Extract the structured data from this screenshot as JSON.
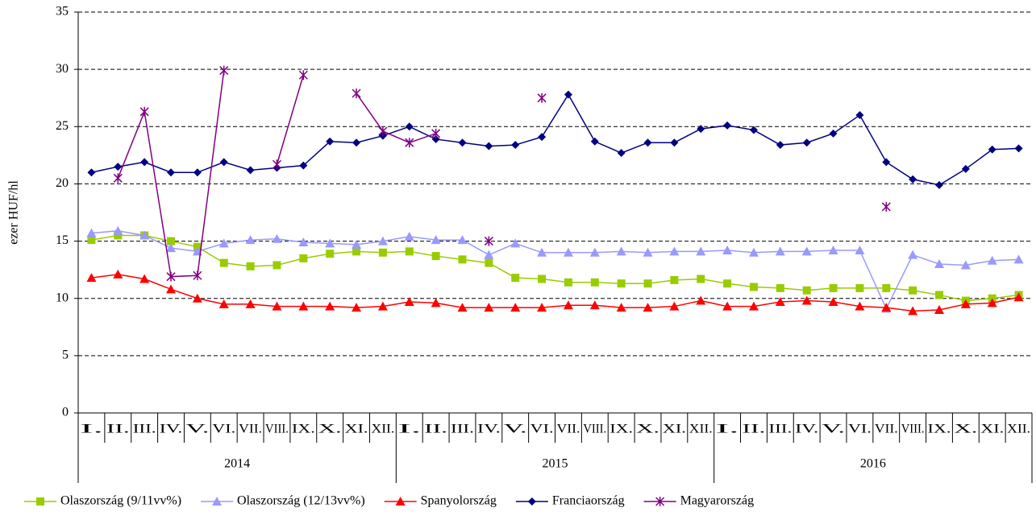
{
  "chart_data": {
    "type": "line",
    "y_label": "ezer HUF/hl",
    "categories": [
      "I.",
      "II.",
      "III.",
      "IV.",
      "V.",
      "VI.",
      "VII.",
      "VIII.",
      "IX.",
      "X.",
      "XI.",
      "XII.",
      "I.",
      "II.",
      "III.",
      "IV.",
      "V.",
      "VI.",
      "VII.",
      "VIII.",
      "IX.",
      "X.",
      "XI.",
      "XII.",
      "I.",
      "II.",
      "III.",
      "IV.",
      "V.",
      "VI.",
      "VII.",
      "VIII.",
      "IX.",
      "X.",
      "XI.",
      "XII."
    ],
    "groups": [
      "2014",
      "2015",
      "2016"
    ],
    "ylim": [
      0,
      35
    ],
    "yticks": [
      0,
      5,
      10,
      15,
      20,
      25,
      30,
      35
    ],
    "grid": true,
    "legend": "bottom",
    "series": [
      {
        "name": "Olaszország (9/11vv%)",
        "color": "#99cc00",
        "marker": "square",
        "values": [
          15.1,
          15.5,
          15.5,
          15.0,
          14.5,
          13.1,
          12.8,
          12.9,
          13.5,
          13.9,
          14.1,
          14.0,
          14.1,
          13.7,
          13.4,
          13.1,
          11.8,
          11.7,
          11.4,
          11.4,
          11.3,
          11.3,
          11.6,
          11.7,
          11.3,
          11.0,
          10.9,
          10.7,
          10.9,
          10.9,
          10.9,
          10.7,
          10.3,
          9.8,
          10.0,
          10.3
        ]
      },
      {
        "name": "Olaszország (12/13vv%)",
        "color": "#9999ff",
        "marker": "triangle",
        "values": [
          15.7,
          15.9,
          15.5,
          14.4,
          14.1,
          14.8,
          15.1,
          15.2,
          14.9,
          14.8,
          14.7,
          15.0,
          15.4,
          15.1,
          15.1,
          13.8,
          14.8,
          14.0,
          14.0,
          14.0,
          14.1,
          14.0,
          14.1,
          14.1,
          14.2,
          14.0,
          14.1,
          14.1,
          14.2,
          14.2,
          9.1,
          13.8,
          13.0,
          12.9,
          13.3,
          13.4
        ]
      },
      {
        "name": "Spanyolország",
        "color": "#ff0000",
        "marker": "triangle",
        "values": [
          11.8,
          12.1,
          11.7,
          10.8,
          10.0,
          9.5,
          9.5,
          9.3,
          9.3,
          9.3,
          9.2,
          9.3,
          9.7,
          9.6,
          9.2,
          9.2,
          9.2,
          9.2,
          9.4,
          9.4,
          9.2,
          9.2,
          9.3,
          9.8,
          9.3,
          9.3,
          9.7,
          9.8,
          9.7,
          9.3,
          9.2,
          8.9,
          9.0,
          9.5,
          9.6,
          10.1
        ]
      },
      {
        "name": "Franciaország",
        "color": "#000080",
        "marker": "diamond",
        "values": [
          21.0,
          21.5,
          21.9,
          21.0,
          21.0,
          21.9,
          21.2,
          21.4,
          21.6,
          23.7,
          23.6,
          24.2,
          25.0,
          23.9,
          23.6,
          23.3,
          23.4,
          24.1,
          27.8,
          23.7,
          22.7,
          23.6,
          23.6,
          24.8,
          25.1,
          24.7,
          23.4,
          23.6,
          24.4,
          26.0,
          21.9,
          20.4,
          19.9,
          21.3,
          23.0,
          23.1
        ]
      },
      {
        "name": "Magyarország",
        "color": "#800080",
        "marker": "star",
        "values": [
          null,
          20.5,
          26.3,
          11.9,
          12.0,
          29.9,
          null,
          21.7,
          29.5,
          null,
          27.9,
          24.6,
          23.6,
          24.4,
          null,
          15.0,
          null,
          27.5,
          null,
          null,
          null,
          null,
          null,
          null,
          null,
          null,
          null,
          null,
          null,
          null,
          18.0,
          null,
          null,
          null,
          null,
          null
        ]
      }
    ]
  }
}
